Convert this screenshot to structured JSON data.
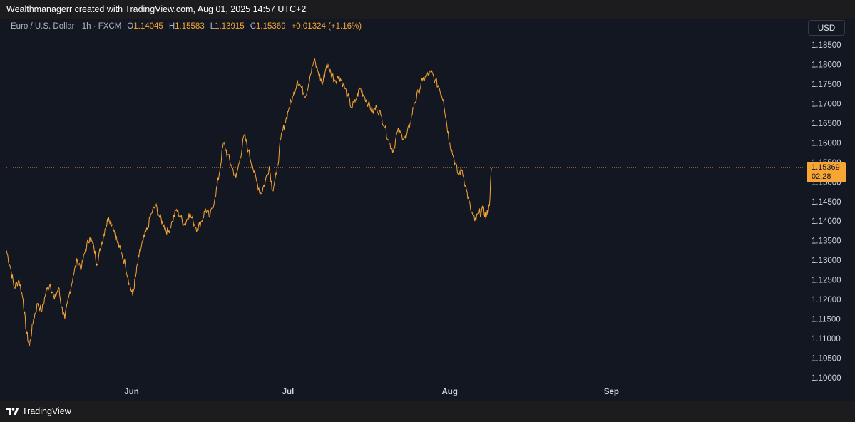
{
  "header": {
    "attribution": "Wealthmanagerr created with TradingView.com, Aug 01, 2025 14:57 UTC+2"
  },
  "legend": {
    "symbol": "Euro / U.S. Dollar · 1h · FXCM",
    "open_label": "O",
    "open": "1.14045",
    "high_label": "H",
    "high": "1.15583",
    "low_label": "L",
    "low": "1.13915",
    "close_label": "C",
    "close": "1.15369",
    "change": "+0.01324 (+1.16%)"
  },
  "currency_button": "USD",
  "price_tag": {
    "price": "1.15369",
    "countdown": "02:28"
  },
  "footer": {
    "brand": "TradingView"
  },
  "colors": {
    "line": "#f7a534",
    "background": "#131722",
    "axis_text": "#d1d4dc"
  },
  "chart_data": {
    "type": "line",
    "title": "Euro / U.S. Dollar · 1h · FXCM",
    "xlabel": "",
    "ylabel": "",
    "ylim": [
      1.0975,
      1.1875
    ],
    "y_ticks": [
      "1.18500",
      "1.18000",
      "1.17500",
      "1.17000",
      "1.16500",
      "1.16000",
      "1.15500",
      "1.15000",
      "1.14500",
      "1.14000",
      "1.13500",
      "1.13000",
      "1.12500",
      "1.12000",
      "1.11500",
      "1.11000",
      "1.10500",
      "1.10000"
    ],
    "x_ticks": [
      {
        "label": "Jun",
        "day": 6
      },
      {
        "label": "Jul",
        "day": 36
      },
      {
        "label": "Aug",
        "day": 67
      },
      {
        "label": "Sep",
        "day": 98
      }
    ],
    "xlim": [
      -18,
      135
    ],
    "last_price": 1.15369,
    "series": [
      {
        "values": [
          [
            -18.0,
            1.1325
          ],
          [
            -17.2,
            1.128
          ],
          [
            -16.5,
            1.123
          ],
          [
            -15.6,
            1.125
          ],
          [
            -14.8,
            1.12
          ],
          [
            -14.2,
            1.112
          ],
          [
            -13.6,
            1.108
          ],
          [
            -12.8,
            1.115
          ],
          [
            -12.0,
            1.119
          ],
          [
            -11.2,
            1.117
          ],
          [
            -10.4,
            1.122
          ],
          [
            -9.6,
            1.124
          ],
          [
            -8.8,
            1.12
          ],
          [
            -8.0,
            1.123
          ],
          [
            -7.4,
            1.118
          ],
          [
            -6.8,
            1.115
          ],
          [
            -6.0,
            1.121
          ],
          [
            -5.2,
            1.126
          ],
          [
            -4.4,
            1.13
          ],
          [
            -3.6,
            1.128
          ],
          [
            -2.8,
            1.133
          ],
          [
            -2.0,
            1.136
          ],
          [
            -1.2,
            1.133
          ],
          [
            -0.6,
            1.129
          ],
          [
            0.2,
            1.134
          ],
          [
            0.9,
            1.138
          ],
          [
            1.6,
            1.141
          ],
          [
            2.4,
            1.139
          ],
          [
            3.2,
            1.135
          ],
          [
            4.0,
            1.132
          ],
          [
            4.8,
            1.129
          ],
          [
            5.6,
            1.124
          ],
          [
            6.2,
            1.121
          ],
          [
            6.8,
            1.126
          ],
          [
            7.4,
            1.131
          ],
          [
            8.2,
            1.135
          ],
          [
            9.0,
            1.138
          ],
          [
            9.8,
            1.142
          ],
          [
            10.6,
            1.144
          ],
          [
            11.4,
            1.141
          ],
          [
            12.2,
            1.139
          ],
          [
            13.0,
            1.137
          ],
          [
            13.8,
            1.14
          ],
          [
            14.6,
            1.143
          ],
          [
            15.4,
            1.141
          ],
          [
            16.2,
            1.139
          ],
          [
            17.0,
            1.142
          ],
          [
            17.8,
            1.14
          ],
          [
            18.6,
            1.138
          ],
          [
            19.4,
            1.14
          ],
          [
            20.2,
            1.143
          ],
          [
            21.0,
            1.141
          ],
          [
            22.0,
            1.146
          ],
          [
            22.8,
            1.152
          ],
          [
            23.6,
            1.16
          ],
          [
            24.4,
            1.157
          ],
          [
            25.2,
            1.154
          ],
          [
            26.0,
            1.151
          ],
          [
            26.8,
            1.156
          ],
          [
            27.6,
            1.162
          ],
          [
            28.4,
            1.158
          ],
          [
            29.2,
            1.154
          ],
          [
            30.0,
            1.15
          ],
          [
            30.8,
            1.147
          ],
          [
            31.6,
            1.15
          ],
          [
            32.4,
            1.154
          ],
          [
            33.0,
            1.148
          ],
          [
            33.8,
            1.152
          ],
          [
            34.6,
            1.161
          ],
          [
            35.4,
            1.165
          ],
          [
            36.2,
            1.169
          ],
          [
            37.0,
            1.172
          ],
          [
            37.8,
            1.176
          ],
          [
            38.6,
            1.174
          ],
          [
            39.4,
            1.172
          ],
          [
            40.2,
            1.177
          ],
          [
            41.0,
            1.181
          ],
          [
            41.8,
            1.178
          ],
          [
            42.6,
            1.175
          ],
          [
            43.4,
            1.18
          ],
          [
            44.2,
            1.178
          ],
          [
            45.0,
            1.176
          ],
          [
            45.8,
            1.177
          ],
          [
            46.6,
            1.175
          ],
          [
            47.4,
            1.172
          ],
          [
            48.2,
            1.169
          ],
          [
            49.0,
            1.171
          ],
          [
            49.8,
            1.174
          ],
          [
            50.6,
            1.172
          ],
          [
            51.4,
            1.17
          ],
          [
            52.2,
            1.168
          ],
          [
            53.0,
            1.169
          ],
          [
            53.8,
            1.167
          ],
          [
            54.6,
            1.164
          ],
          [
            55.4,
            1.16
          ],
          [
            56.2,
            1.158
          ],
          [
            57.0,
            1.163
          ],
          [
            57.8,
            1.162
          ],
          [
            58.6,
            1.161
          ],
          [
            59.4,
            1.165
          ],
          [
            60.2,
            1.17
          ],
          [
            61.0,
            1.173
          ],
          [
            61.8,
            1.176
          ],
          [
            62.6,
            1.177
          ],
          [
            63.4,
            1.178
          ],
          [
            64.2,
            1.176
          ],
          [
            65.0,
            1.174
          ],
          [
            65.8,
            1.171
          ],
          [
            66.4,
            1.165
          ],
          [
            67.0,
            1.16
          ],
          [
            67.8,
            1.156
          ],
          [
            68.6,
            1.152
          ],
          [
            69.4,
            1.153
          ],
          [
            70.2,
            1.148
          ],
          [
            71.0,
            1.143
          ],
          [
            71.8,
            1.14
          ],
          [
            72.6,
            1.142
          ],
          [
            73.4,
            1.143
          ],
          [
            74.0,
            1.141
          ],
          [
            74.6,
            1.144
          ],
          [
            75.0,
            1.1537
          ]
        ]
      }
    ]
  }
}
